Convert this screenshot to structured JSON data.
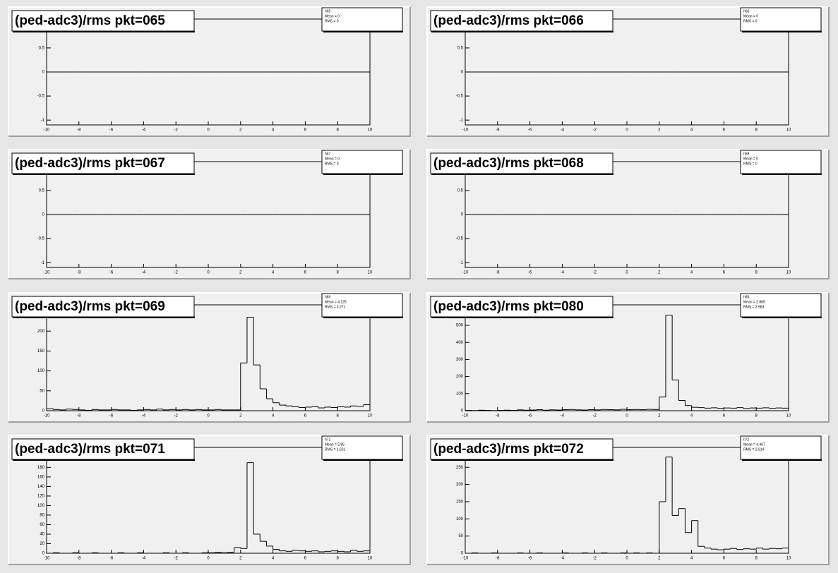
{
  "chart_data": [
    {
      "type": "histogram",
      "title": "(ped-adc3)/rms pkt=065",
      "stats": [
        "h65",
        "Mean = 0",
        "RMS = 0"
      ],
      "color": "#000000",
      "bins": [
        -10,
        -9.6,
        -9.2,
        -8.8,
        -8.4,
        -8,
        -7.6,
        -7.2,
        -6.8,
        -6.4,
        -6,
        -5.6,
        -5.2,
        -4.8,
        -4.4,
        -4,
        -3.6,
        -3.2,
        -2.8,
        -2.4,
        -2,
        -1.6,
        -1.2,
        -0.8,
        -0.4,
        0,
        0.4,
        0.8,
        1.2,
        1.6,
        2,
        2.4,
        2.8,
        3.2,
        3.6,
        4,
        4.4,
        4.8,
        5.2,
        5.6,
        6,
        6.4,
        6.8,
        7.2,
        7.6,
        8,
        8.4,
        8.8,
        9.2,
        9.6,
        10
      ],
      "values": [
        0,
        0,
        0,
        0,
        0,
        0,
        0,
        0,
        0,
        0,
        0,
        0,
        0,
        0,
        0,
        0,
        0,
        0,
        0,
        0,
        0,
        0,
        0,
        0,
        0,
        0,
        0,
        0,
        0,
        0,
        0,
        0,
        0,
        0,
        0,
        0,
        0,
        0,
        0,
        0,
        0,
        0,
        0,
        0,
        0,
        0,
        0,
        0,
        0,
        0
      ],
      "xlim": [
        -10,
        10
      ],
      "xticks": [
        -10,
        -8,
        -6,
        -4,
        -2,
        0,
        2,
        4,
        6,
        8,
        10
      ],
      "ylim": [
        -1.1,
        1.1
      ],
      "yticks": [
        -1,
        -0.5,
        0,
        0.5,
        1
      ]
    },
    {
      "type": "histogram",
      "title": "(ped-adc3)/rms pkt=066",
      "stats": [
        "h66",
        "Mean = 0",
        "RMS = 0"
      ],
      "color": "#000000",
      "bins": [
        -10,
        -9.6,
        -9.2,
        -8.8,
        -8.4,
        -8,
        -7.6,
        -7.2,
        -6.8,
        -6.4,
        -6,
        -5.6,
        -5.2,
        -4.8,
        -4.4,
        -4,
        -3.6,
        -3.2,
        -2.8,
        -2.4,
        -2,
        -1.6,
        -1.2,
        -0.8,
        -0.4,
        0,
        0.4,
        0.8,
        1.2,
        1.6,
        2,
        2.4,
        2.8,
        3.2,
        3.6,
        4,
        4.4,
        4.8,
        5.2,
        5.6,
        6,
        6.4,
        6.8,
        7.2,
        7.6,
        8,
        8.4,
        8.8,
        9.2,
        9.6,
        10
      ],
      "values": [
        0,
        0,
        0,
        0,
        0,
        0,
        0,
        0,
        0,
        0,
        0,
        0,
        0,
        0,
        0,
        0,
        0,
        0,
        0,
        0,
        0,
        0,
        0,
        0,
        0,
        0,
        0,
        0,
        0,
        0,
        0,
        0,
        0,
        0,
        0,
        0,
        0,
        0,
        0,
        0,
        0,
        0,
        0,
        0,
        0,
        0,
        0,
        0,
        0,
        0
      ],
      "xlim": [
        -10,
        10
      ],
      "xticks": [
        -10,
        -8,
        -6,
        -4,
        -2,
        0,
        2,
        4,
        6,
        8,
        10
      ],
      "ylim": [
        -1.1,
        1.1
      ],
      "yticks": [
        -1,
        -0.5,
        0,
        0.5,
        1
      ]
    },
    {
      "type": "histogram",
      "title": "(ped-adc3)/rms pkt=067",
      "stats": [
        "h67",
        "Mean = 0",
        "RMS = 0"
      ],
      "color": "#000000",
      "bins": [
        -10,
        -9.6,
        -9.2,
        -8.8,
        -8.4,
        -8,
        -7.6,
        -7.2,
        -6.8,
        -6.4,
        -6,
        -5.6,
        -5.2,
        -4.8,
        -4.4,
        -4,
        -3.6,
        -3.2,
        -2.8,
        -2.4,
        -2,
        -1.6,
        -1.2,
        -0.8,
        -0.4,
        0,
        0.4,
        0.8,
        1.2,
        1.6,
        2,
        2.4,
        2.8,
        3.2,
        3.6,
        4,
        4.4,
        4.8,
        5.2,
        5.6,
        6,
        6.4,
        6.8,
        7.2,
        7.6,
        8,
        8.4,
        8.8,
        9.2,
        9.6,
        10
      ],
      "values": [
        0,
        0,
        0,
        0,
        0,
        0,
        0,
        0,
        0,
        0,
        0,
        0,
        0,
        0,
        0,
        0,
        0,
        0,
        0,
        0,
        0,
        0,
        0,
        0,
        0,
        0,
        0,
        0,
        0,
        0,
        0,
        0,
        0,
        0,
        0,
        0,
        0,
        0,
        0,
        0,
        0,
        0,
        0,
        0,
        0,
        0,
        0,
        0,
        0,
        0
      ],
      "xlim": [
        -10,
        10
      ],
      "xticks": [
        -10,
        -8,
        -6,
        -4,
        -2,
        0,
        2,
        4,
        6,
        8,
        10
      ],
      "ylim": [
        -1.1,
        1.1
      ],
      "yticks": [
        -1,
        -0.5,
        0,
        0.5,
        1
      ]
    },
    {
      "type": "histogram",
      "title": "(ped-adc3)/rms pkt=068",
      "stats": [
        "h68",
        "Mean = 0",
        "RMS = 0"
      ],
      "color": "#000000",
      "bins": [
        -10,
        -9.6,
        -9.2,
        -8.8,
        -8.4,
        -8,
        -7.6,
        -7.2,
        -6.8,
        -6.4,
        -6,
        -5.6,
        -5.2,
        -4.8,
        -4.4,
        -4,
        -3.6,
        -3.2,
        -2.8,
        -2.4,
        -2,
        -1.6,
        -1.2,
        -0.8,
        -0.4,
        0,
        0.4,
        0.8,
        1.2,
        1.6,
        2,
        2.4,
        2.8,
        3.2,
        3.6,
        4,
        4.4,
        4.8,
        5.2,
        5.6,
        6,
        6.4,
        6.8,
        7.2,
        7.6,
        8,
        8.4,
        8.8,
        9.2,
        9.6,
        10
      ],
      "values": [
        0,
        0,
        0,
        0,
        0,
        0,
        0,
        0,
        0,
        0,
        0,
        0,
        0,
        0,
        0,
        0,
        0,
        0,
        0,
        0,
        0,
        0,
        0,
        0,
        0,
        0,
        0,
        0,
        0,
        0,
        0,
        0,
        0,
        0,
        0,
        0,
        0,
        0,
        0,
        0,
        0,
        0,
        0,
        0,
        0,
        0,
        0,
        0,
        0,
        0
      ],
      "xlim": [
        -10,
        10
      ],
      "xticks": [
        -10,
        -8,
        -6,
        -4,
        -2,
        0,
        2,
        4,
        6,
        8,
        10
      ],
      "ylim": [
        -1.1,
        1.1
      ],
      "yticks": [
        -1,
        -0.5,
        0,
        0.5,
        1
      ]
    },
    {
      "type": "histogram",
      "title": "(ped-adc3)/rms pkt=069",
      "stats": [
        "h69",
        "Mean = 4.125",
        "RMS = 3.271"
      ],
      "color": "#000000",
      "bins": [
        -10,
        -9.6,
        -9.2,
        -8.8,
        -8.4,
        -8,
        -7.6,
        -7.2,
        -6.8,
        -6.4,
        -6,
        -5.6,
        -5.2,
        -4.8,
        -4.4,
        -4,
        -3.6,
        -3.2,
        -2.8,
        -2.4,
        -2,
        -1.6,
        -1.2,
        -0.8,
        -0.4,
        0,
        0.4,
        0.8,
        1.2,
        1.6,
        2,
        2.4,
        2.8,
        3.2,
        3.6,
        4,
        4.4,
        4.8,
        5.2,
        5.6,
        6,
        6.4,
        6.8,
        7.2,
        7.6,
        8,
        8.4,
        8.8,
        9.2,
        9.6,
        10
      ],
      "values": [
        5,
        3,
        2,
        4,
        3,
        2,
        1,
        3,
        2,
        2,
        3,
        2,
        2,
        1,
        2,
        3,
        2,
        4,
        2,
        3,
        2,
        3,
        2,
        3,
        2,
        2,
        3,
        2,
        2,
        2,
        120,
        235,
        115,
        55,
        30,
        20,
        14,
        12,
        10,
        8,
        9,
        10,
        7,
        9,
        8,
        10,
        9,
        12,
        11,
        15
      ],
      "xlim": [
        -10,
        10
      ],
      "xticks": [
        -10,
        -8,
        -6,
        -4,
        -2,
        0,
        2,
        4,
        6,
        8,
        10
      ],
      "ylim": [
        0,
        266
      ],
      "yticks": [
        0,
        50,
        100,
        150,
        200,
        250
      ]
    },
    {
      "type": "histogram",
      "title": "(ped-adc3)/rms pkt=080",
      "stats": [
        "h80",
        "Mean = 2.889",
        "RMS = 2.583"
      ],
      "color": "#000000",
      "bins": [
        -10,
        -9.6,
        -9.2,
        -8.8,
        -8.4,
        -8,
        -7.6,
        -7.2,
        -6.8,
        -6.4,
        -6,
        -5.6,
        -5.2,
        -4.8,
        -4.4,
        -4,
        -3.6,
        -3.2,
        -2.8,
        -2.4,
        -2,
        -1.6,
        -1.2,
        -0.8,
        -0.4,
        0,
        0.4,
        0.8,
        1.2,
        1.6,
        2,
        2.4,
        2.8,
        3.2,
        3.6,
        4,
        4.4,
        4.8,
        5.2,
        5.6,
        6,
        6.4,
        6.8,
        7.2,
        7.6,
        8,
        8.4,
        8.8,
        9.2,
        9.6,
        10
      ],
      "values": [
        2,
        1,
        3,
        2,
        1,
        2,
        3,
        2,
        5,
        3,
        4,
        6,
        3,
        5,
        4,
        6,
        7,
        5,
        4,
        6,
        5,
        7,
        6,
        5,
        8,
        6,
        7,
        6,
        8,
        7,
        80,
        560,
        180,
        60,
        30,
        20,
        18,
        15,
        17,
        14,
        16,
        15,
        18,
        13,
        16,
        15,
        17,
        14,
        16,
        15
      ],
      "xlim": [
        -10,
        10
      ],
      "xticks": [
        -10,
        -8,
        -6,
        -4,
        -2,
        0,
        2,
        4,
        6,
        8,
        10
      ],
      "ylim": [
        0,
        620
      ],
      "yticks": [
        0,
        100,
        200,
        300,
        400,
        500
      ]
    },
    {
      "type": "histogram",
      "title": "(ped-adc3)/rms pkt=071",
      "stats": [
        "h71",
        "Mean = 2.85",
        "RMS = 1.631"
      ],
      "color": "#000000",
      "bins": [
        -10,
        -9.6,
        -9.2,
        -8.8,
        -8.4,
        -8,
        -7.6,
        -7.2,
        -6.8,
        -6.4,
        -6,
        -5.6,
        -5.2,
        -4.8,
        -4.4,
        -4,
        -3.6,
        -3.2,
        -2.8,
        -2.4,
        -2,
        -1.6,
        -1.2,
        -0.8,
        -0.4,
        0,
        0.4,
        0.8,
        1.2,
        1.6,
        2,
        2.4,
        2.8,
        3.2,
        3.6,
        4,
        4.4,
        4.8,
        5.2,
        5.6,
        6,
        6.4,
        6.8,
        7.2,
        7.6,
        8,
        8.4,
        8.8,
        9.2,
        9.6,
        10
      ],
      "values": [
        0,
        1,
        0,
        0,
        1,
        0,
        0,
        1,
        0,
        0,
        0,
        1,
        0,
        0,
        1,
        0,
        0,
        0,
        1,
        0,
        0,
        1,
        0,
        0,
        1,
        1,
        2,
        1,
        2,
        12,
        10,
        190,
        40,
        25,
        15,
        8,
        5,
        4,
        6,
        5,
        4,
        5,
        3,
        4,
        5,
        4,
        3,
        6,
        4,
        5
      ],
      "xlim": [
        -10,
        10
      ],
      "xticks": [
        -10,
        -8,
        -6,
        -4,
        -2,
        0,
        2,
        4,
        6,
        8,
        10
      ],
      "ylim": [
        0,
        222
      ],
      "yticks": [
        0,
        20,
        40,
        60,
        80,
        100,
        120,
        140,
        160,
        180
      ]
    },
    {
      "type": "histogram",
      "title": "(ped-adc3)/rms pkt=072",
      "stats": [
        "h72",
        "Mean = 4.467",
        "RMS = 2.914"
      ],
      "color": "#000000",
      "bins": [
        -10,
        -9.6,
        -9.2,
        -8.8,
        -8.4,
        -8,
        -7.6,
        -7.2,
        -6.8,
        -6.4,
        -6,
        -5.6,
        -5.2,
        -4.8,
        -4.4,
        -4,
        -3.6,
        -3.2,
        -2.8,
        -2.4,
        -2,
        -1.6,
        -1.2,
        -0.8,
        -0.4,
        0,
        0.4,
        0.8,
        1.2,
        1.6,
        2,
        2.4,
        2.8,
        3.2,
        3.6,
        4,
        4.4,
        4.8,
        5.2,
        5.6,
        6,
        6.4,
        6.8,
        7.2,
        7.6,
        8,
        8.4,
        8.8,
        9.2,
        9.6,
        10
      ],
      "values": [
        0,
        1,
        0,
        0,
        1,
        0,
        0,
        0,
        1,
        0,
        0,
        1,
        0,
        0,
        0,
        1,
        0,
        0,
        1,
        0,
        0,
        1,
        0,
        0,
        1,
        0,
        1,
        0,
        1,
        0,
        150,
        280,
        110,
        130,
        60,
        95,
        20,
        15,
        12,
        10,
        12,
        14,
        11,
        13,
        12,
        15,
        12,
        14,
        13,
        15
      ],
      "xlim": [
        -10,
        10
      ],
      "xticks": [
        -10,
        -8,
        -6,
        -4,
        -2,
        0,
        2,
        4,
        6,
        8,
        10
      ],
      "ylim": [
        0,
        308
      ],
      "yticks": [
        0,
        50,
        100,
        150,
        200,
        250
      ]
    }
  ]
}
